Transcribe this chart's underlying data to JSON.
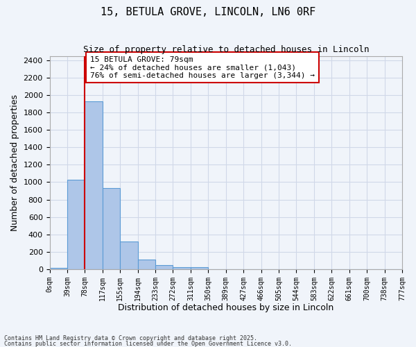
{
  "title": "15, BETULA GROVE, LINCOLN, LN6 0RF",
  "subtitle": "Size of property relative to detached houses in Lincoln",
  "xlabel": "Distribution of detached houses by size in Lincoln",
  "ylabel": "Number of detached properties",
  "bins": [
    "0sqm",
    "39sqm",
    "78sqm",
    "117sqm",
    "155sqm",
    "194sqm",
    "233sqm",
    "272sqm",
    "311sqm",
    "350sqm",
    "389sqm",
    "427sqm",
    "466sqm",
    "505sqm",
    "544sqm",
    "583sqm",
    "622sqm",
    "661sqm",
    "700sqm",
    "738sqm",
    "777sqm"
  ],
  "bar_values": [
    15,
    1030,
    1930,
    935,
    315,
    110,
    50,
    25,
    20,
    0,
    0,
    0,
    0,
    0,
    0,
    0,
    0,
    0,
    0,
    0
  ],
  "bar_color": "#aec6e8",
  "bar_edge_color": "#5b9bd5",
  "grid_color": "#d0d8e8",
  "background_color": "#f0f4fa",
  "vline_x": 2,
  "vline_color": "#cc0000",
  "annotation_text": "15 BETULA GROVE: 79sqm\n← 24% of detached houses are smaller (1,043)\n76% of semi-detached houses are larger (3,344) →",
  "annotation_box_color": "#ffffff",
  "annotation_box_edge": "#cc0000",
  "ylim": [
    0,
    2450
  ],
  "yticks": [
    0,
    200,
    400,
    600,
    800,
    1000,
    1200,
    1400,
    1600,
    1800,
    2000,
    2200,
    2400
  ],
  "footer1": "Contains HM Land Registry data © Crown copyright and database right 2025.",
  "footer2": "Contains public sector information licensed under the Open Government Licence v3.0."
}
